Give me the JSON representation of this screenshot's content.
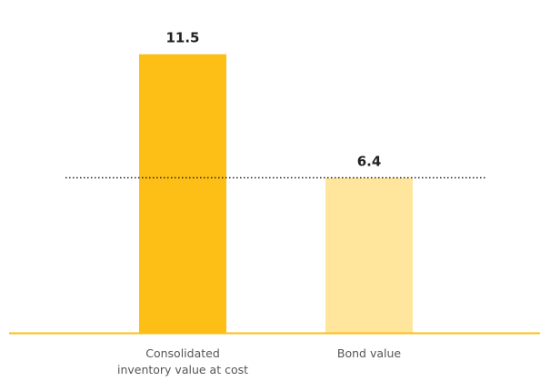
{
  "chart_data": {
    "type": "bar",
    "categories": [
      [
        "Consolidated",
        "inventory value at cost"
      ],
      [
        "Bond value"
      ]
    ],
    "values": [
      11.5,
      6.4
    ],
    "value_labels": [
      "11.5",
      "6.4"
    ],
    "reference_line": 6.4,
    "ylim": [
      0,
      12.8
    ],
    "grid": false,
    "legend": "none",
    "bar_colors": [
      "#FDBE16",
      "#FFE69C"
    ],
    "baseline_color": "#FDBE16",
    "reference_line_color": "#222222"
  }
}
